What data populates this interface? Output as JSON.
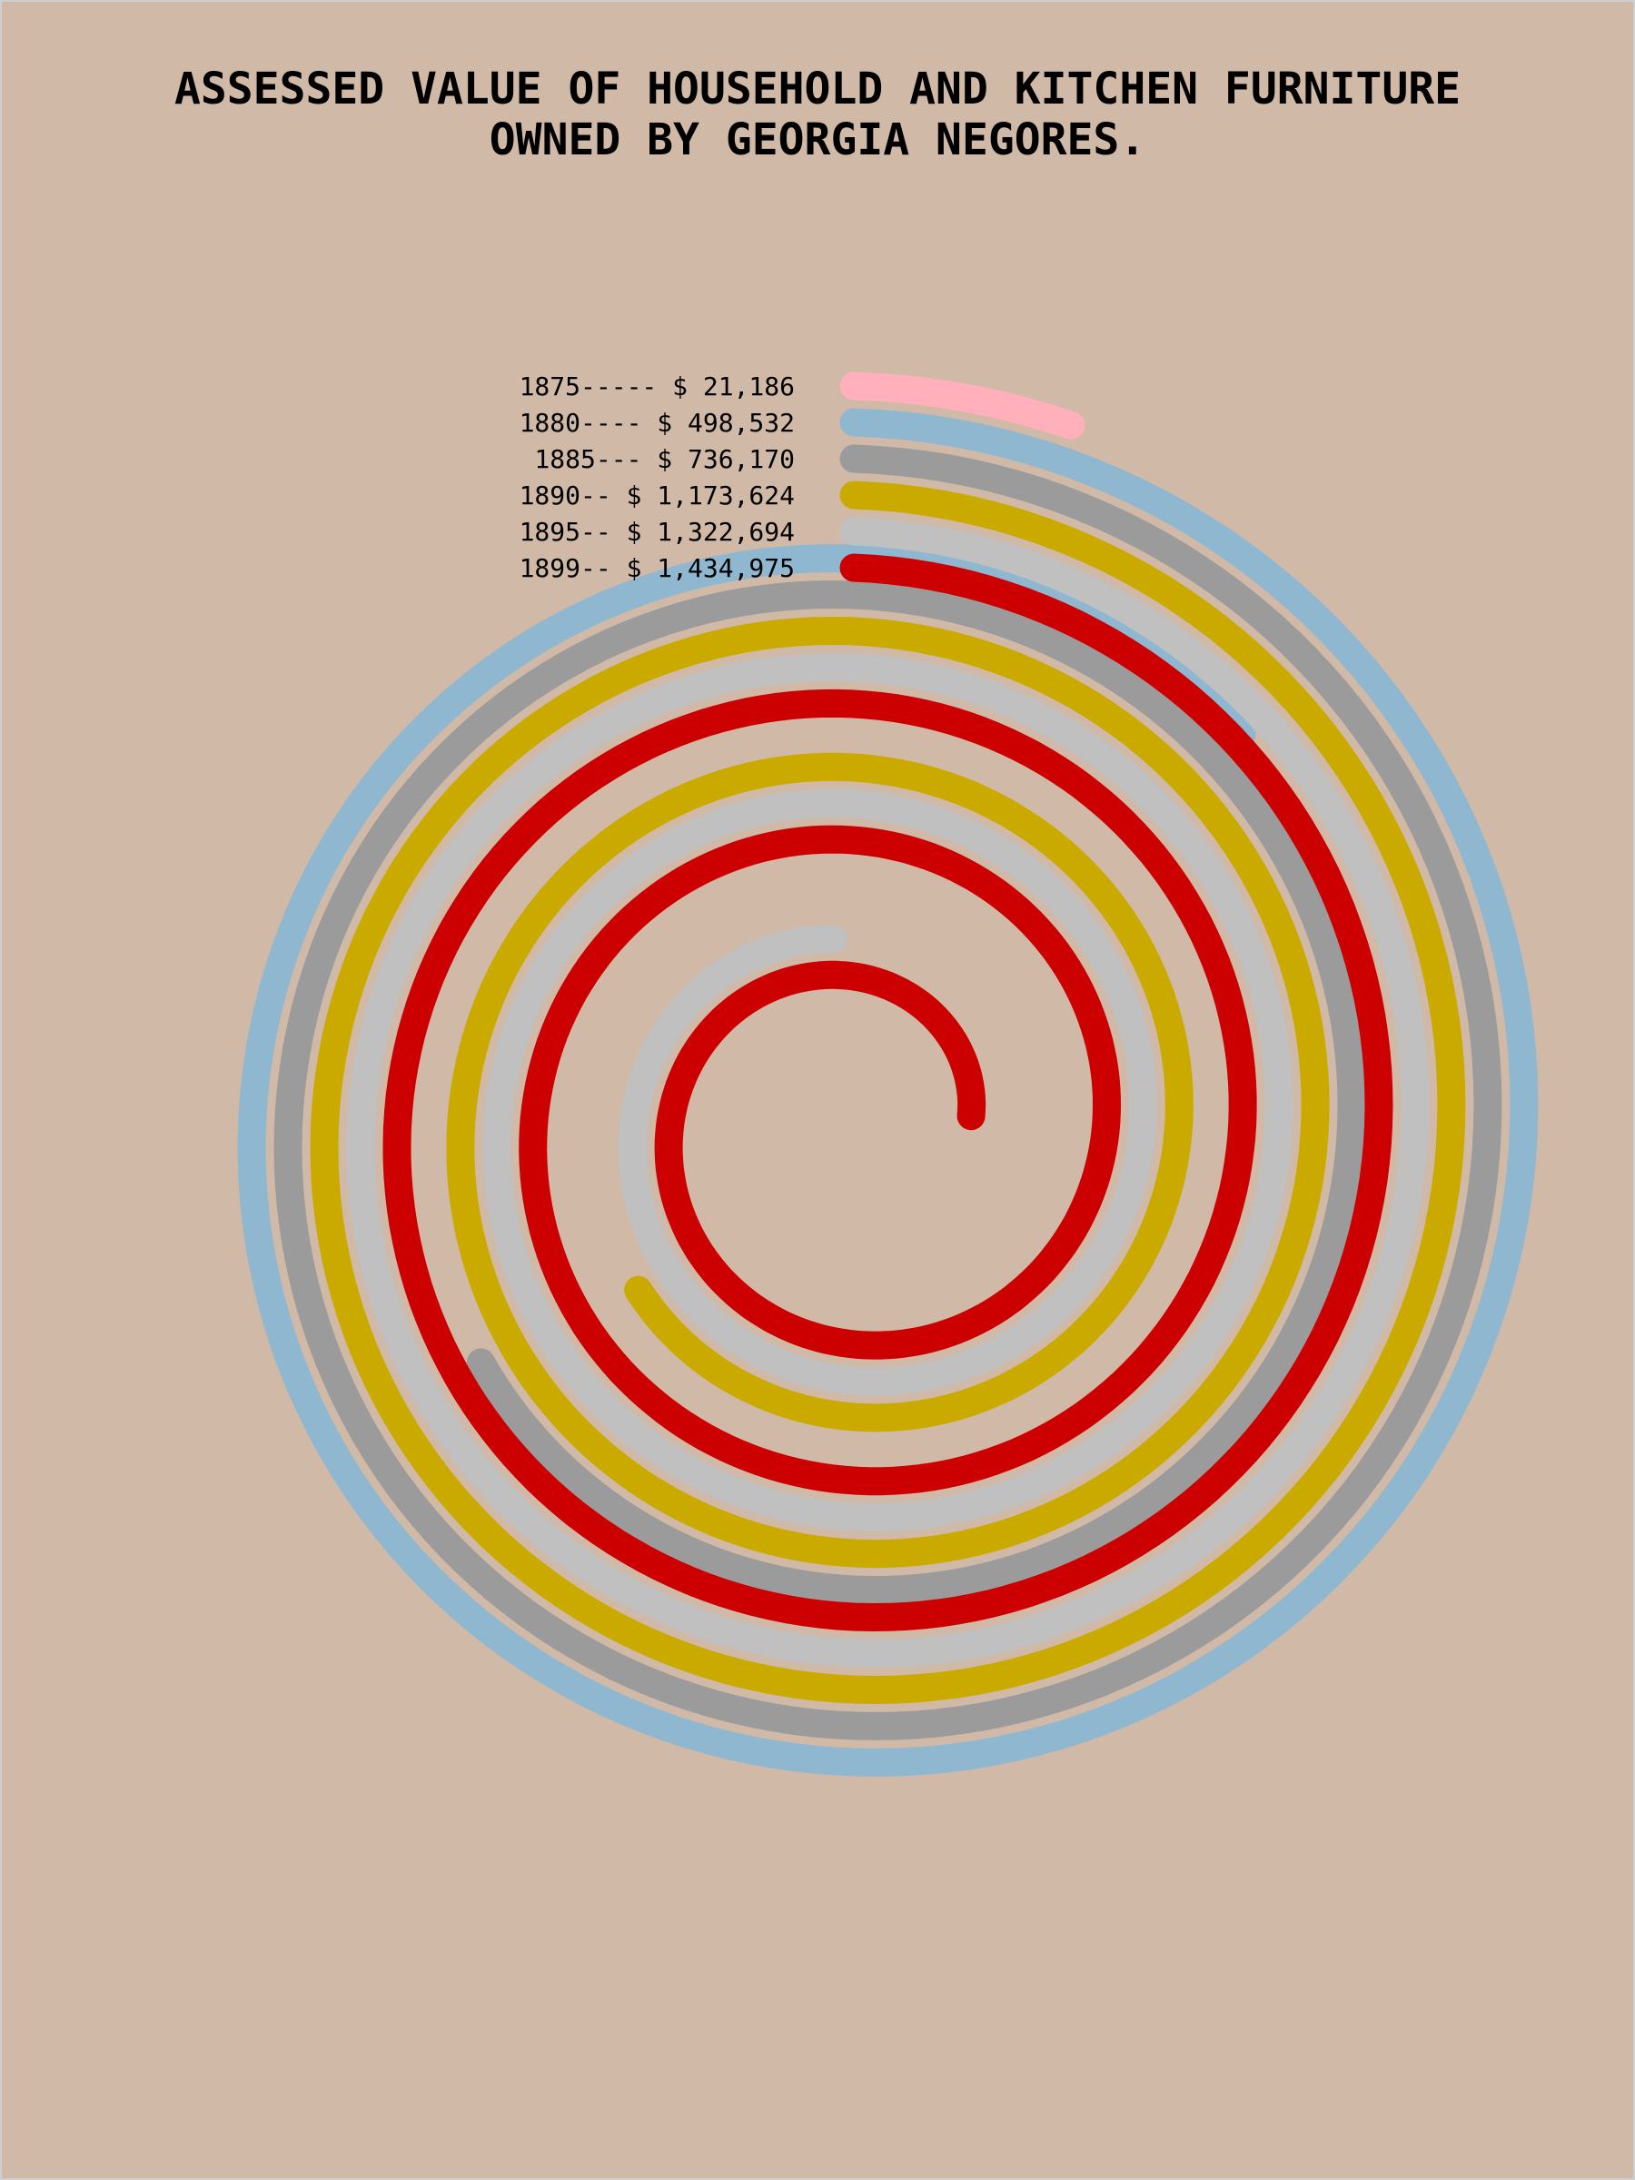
{
  "title_line1": "ASSESSED VALUE OF HOUSEHOLD AND KITCHEN FURNITURE",
  "title_line2": "OWNED BY GEORGIA NEGORES.",
  "chart_data": {
    "type": "spiral",
    "title": "ASSESSED VALUE OF HOUSEHOLD AND KITCHEN FURNITURE OWNED BY GEORGIA NEGORES.",
    "series": [
      {
        "year": "1875",
        "value": 21186,
        "label": "1875----- $ 21,186",
        "color": "#ffb0bb"
      },
      {
        "year": "1880",
        "value": 498532,
        "label": "1880---- $ 498,532",
        "color": "#8fb8d0"
      },
      {
        "year": "1885",
        "value": 736170,
        "label": "1885---  $ 736,170",
        "color": "#9b9b9b"
      },
      {
        "year": "1890",
        "value": 1173624,
        "label": "1890-- $ 1,173,624",
        "color": "#cbaa00"
      },
      {
        "year": "1895",
        "value": 1322694,
        "label": "1895-- $ 1,322,694",
        "color": "#c0c0c0"
      },
      {
        "year": "1899",
        "value": 1434975,
        "label": "1899-- $ 1,434,975",
        "color": "#cc0000"
      }
    ]
  }
}
